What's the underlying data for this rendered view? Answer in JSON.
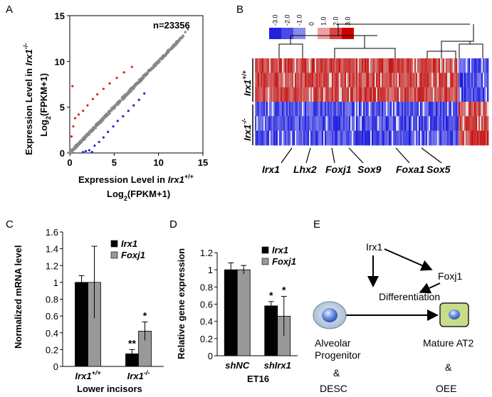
{
  "panels": {
    "A": {
      "letter": "A",
      "n_label": "n=23356",
      "ylabel_1": "Expression Level in",
      "ylabel_gene": "Irx1",
      "ylabel_sup": "-/-",
      "ylabel_2": "Log",
      "ylabel_sub": "2",
      "ylabel_3": "(FPKM+1)",
      "xlabel_1": "Expression Level in",
      "xlabel_gene": "Irx1",
      "xlabel_sup": "+/+",
      "xlabel_2": "Log",
      "xlabel_sub": "2",
      "xlabel_3": "(FPKM+1)"
    },
    "B": {
      "letter": "B",
      "scale_labels": [
        "-3.0",
        "-2.0",
        "-1.0",
        "0",
        "1.0",
        "2.0",
        "3.0"
      ],
      "scale_colors": [
        "#2222dd",
        "#4a4ae6",
        "#8888ee",
        "#ffffff",
        "#eea0a0",
        "#dd4444",
        "#cc0000"
      ],
      "row_group_top": "Irx1",
      "row_group_top_sup": "+/+",
      "row_group_bottom": "Irx1",
      "row_group_bottom_sup": "-/-",
      "genes": [
        "Irx1",
        "Lhx2",
        "Foxj1",
        "Sox9",
        "Foxa1",
        "Sox5"
      ]
    },
    "C": {
      "letter": "C",
      "ylabel": "Normalized mRNA level",
      "xgroup_label": "Lower incisors",
      "legend": [
        "Irx1",
        "Foxj1"
      ]
    },
    "D": {
      "letter": "D",
      "ylabel": "Relative gene expression",
      "xgroup_label": "ET16",
      "legend": [
        "Irx1",
        "Foxj1"
      ]
    },
    "E": {
      "letter": "E",
      "irx1": "Irx1",
      "foxj1": "Foxj1",
      "differentiation": "Differentiation",
      "left_1": "Alveolar",
      "left_2": "Progenitor",
      "left_3": "&",
      "left_4": "DESC",
      "right_1": "Mature AT2",
      "right_2": "&",
      "right_3": "OEE"
    }
  },
  "chart_data": [
    {
      "panel": "A",
      "type": "scatter",
      "xlim": [
        0,
        15
      ],
      "ylim": [
        0,
        15
      ],
      "xticks": [
        0,
        5,
        10,
        15
      ],
      "yticks": [
        0,
        5,
        10,
        15
      ],
      "series": [
        {
          "color": "#808080",
          "points": [
            [
              0.3,
              0.4
            ],
            [
              0.8,
              0.9
            ],
            [
              1.2,
              1.1
            ],
            [
              1.6,
              1.7
            ],
            [
              2.0,
              2.1
            ],
            [
              2.5,
              2.4
            ],
            [
              3.0,
              3.1
            ],
            [
              3.5,
              3.4
            ],
            [
              4.0,
              4.1
            ],
            [
              4.5,
              4.6
            ],
            [
              5.0,
              4.9
            ],
            [
              5.5,
              5.6
            ],
            [
              6.0,
              6.1
            ],
            [
              6.5,
              6.4
            ],
            [
              7.0,
              7.1
            ],
            [
              7.5,
              7.6
            ],
            [
              8.0,
              7.9
            ],
            [
              8.5,
              8.6
            ],
            [
              9.0,
              9.1
            ],
            [
              9.5,
              9.4
            ],
            [
              10.0,
              10.1
            ],
            [
              10.5,
              10.6
            ],
            [
              11.0,
              11.0
            ],
            [
              11.5,
              11.4
            ],
            [
              12.0,
              12.1
            ],
            [
              12.5,
              12.6
            ],
            [
              13.0,
              13.2
            ],
            [
              13.3,
              13.5
            ]
          ]
        },
        {
          "color": "#dd2222",
          "points": [
            [
              0.2,
              1.8
            ],
            [
              0.4,
              2.9
            ],
            [
              0.6,
              3.8
            ],
            [
              1.0,
              4.2
            ],
            [
              1.5,
              4.6
            ],
            [
              2.0,
              5.2
            ],
            [
              2.6,
              5.9
            ],
            [
              3.1,
              6.4
            ],
            [
              3.8,
              7.0
            ],
            [
              4.5,
              7.6
            ],
            [
              5.3,
              8.2
            ],
            [
              6.1,
              8.8
            ],
            [
              7.0,
              9.4
            ],
            [
              0.3,
              7.3
            ]
          ]
        },
        {
          "color": "#2222cc",
          "points": [
            [
              1.5,
              0.1
            ],
            [
              2.2,
              0.3
            ],
            [
              2.8,
              0.8
            ],
            [
              3.3,
              1.2
            ],
            [
              3.8,
              1.7
            ],
            [
              4.3,
              2.3
            ],
            [
              4.9,
              2.9
            ],
            [
              5.4,
              3.5
            ],
            [
              6.0,
              4.0
            ],
            [
              6.6,
              4.6
            ],
            [
              7.2,
              5.2
            ],
            [
              7.8,
              5.8
            ],
            [
              8.4,
              6.5
            ],
            [
              1.8,
              0.2
            ],
            [
              2.5,
              0.1
            ]
          ]
        }
      ]
    },
    {
      "panel": "C",
      "type": "bar",
      "categories": [
        "Irx1+/+",
        "Irx1-/-"
      ],
      "ylim": [
        0,
        1.6
      ],
      "yticks": [
        0,
        0.2,
        0.4,
        0.6,
        0.8,
        1,
        1.2,
        1.4,
        1.6
      ],
      "series": [
        {
          "name": "Irx1",
          "values": [
            1.0,
            0.15
          ],
          "errors": [
            0.08,
            0.05
          ],
          "color": "#000000"
        },
        {
          "name": "Foxj1",
          "values": [
            1.0,
            0.42
          ],
          "errors": [
            0.43,
            0.11
          ],
          "color": "#999999"
        }
      ],
      "annotations": [
        {
          "category": "Irx1-/-",
          "series": "Irx1",
          "text": "**"
        },
        {
          "category": "Irx1-/-",
          "series": "Foxj1",
          "text": "*"
        }
      ]
    },
    {
      "panel": "D",
      "type": "bar",
      "categories": [
        "shNC",
        "shIrx1"
      ],
      "ylim": [
        0,
        1.2
      ],
      "yticks": [
        0,
        0.2,
        0.4,
        0.6,
        0.8,
        1,
        1.2
      ],
      "series": [
        {
          "name": "Irx1",
          "values": [
            1.0,
            0.58
          ],
          "errors": [
            0.08,
            0.05
          ],
          "color": "#000000"
        },
        {
          "name": "Foxj1",
          "values": [
            1.0,
            0.46
          ],
          "errors": [
            0.05,
            0.23
          ],
          "color": "#999999"
        }
      ],
      "annotations": [
        {
          "category": "shIrx1",
          "series": "Irx1",
          "text": "*"
        },
        {
          "category": "shIrx1",
          "series": "Foxj1",
          "text": "*"
        }
      ]
    }
  ]
}
